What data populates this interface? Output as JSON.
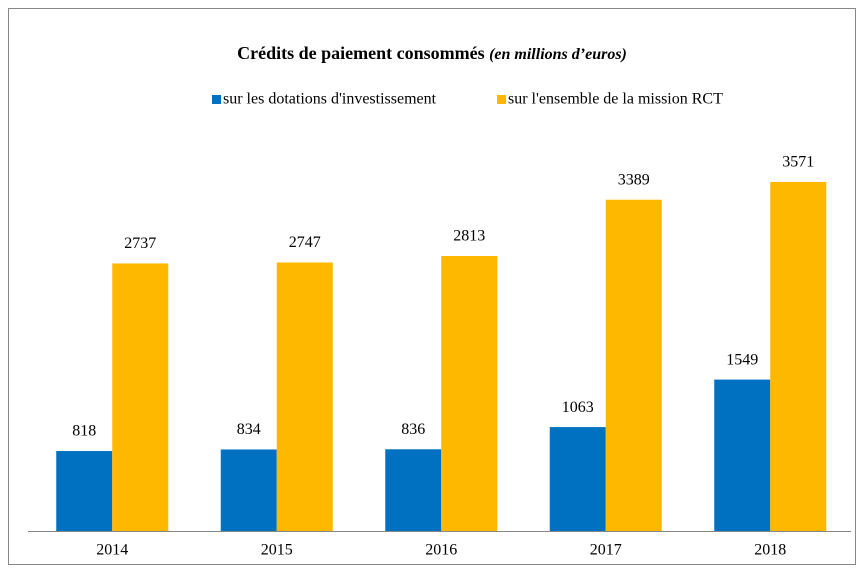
{
  "chart_data": {
    "type": "bar",
    "title": "Crédits de paiement consommés",
    "subtitle": "(en millions d’euros)",
    "categories": [
      "2014",
      "2015",
      "2016",
      "2017",
      "2018"
    ],
    "series": [
      {
        "name": "sur les dotations d'investissement",
        "color": "#0070c0",
        "values": [
          818,
          834,
          836,
          1063,
          1549
        ]
      },
      {
        "name": "sur l'ensemble de la mission RCT",
        "color": "#ffb800",
        "values": [
          2737,
          2747,
          2813,
          3389,
          3571
        ]
      }
    ],
    "ylim": [
      0,
      4000
    ]
  }
}
